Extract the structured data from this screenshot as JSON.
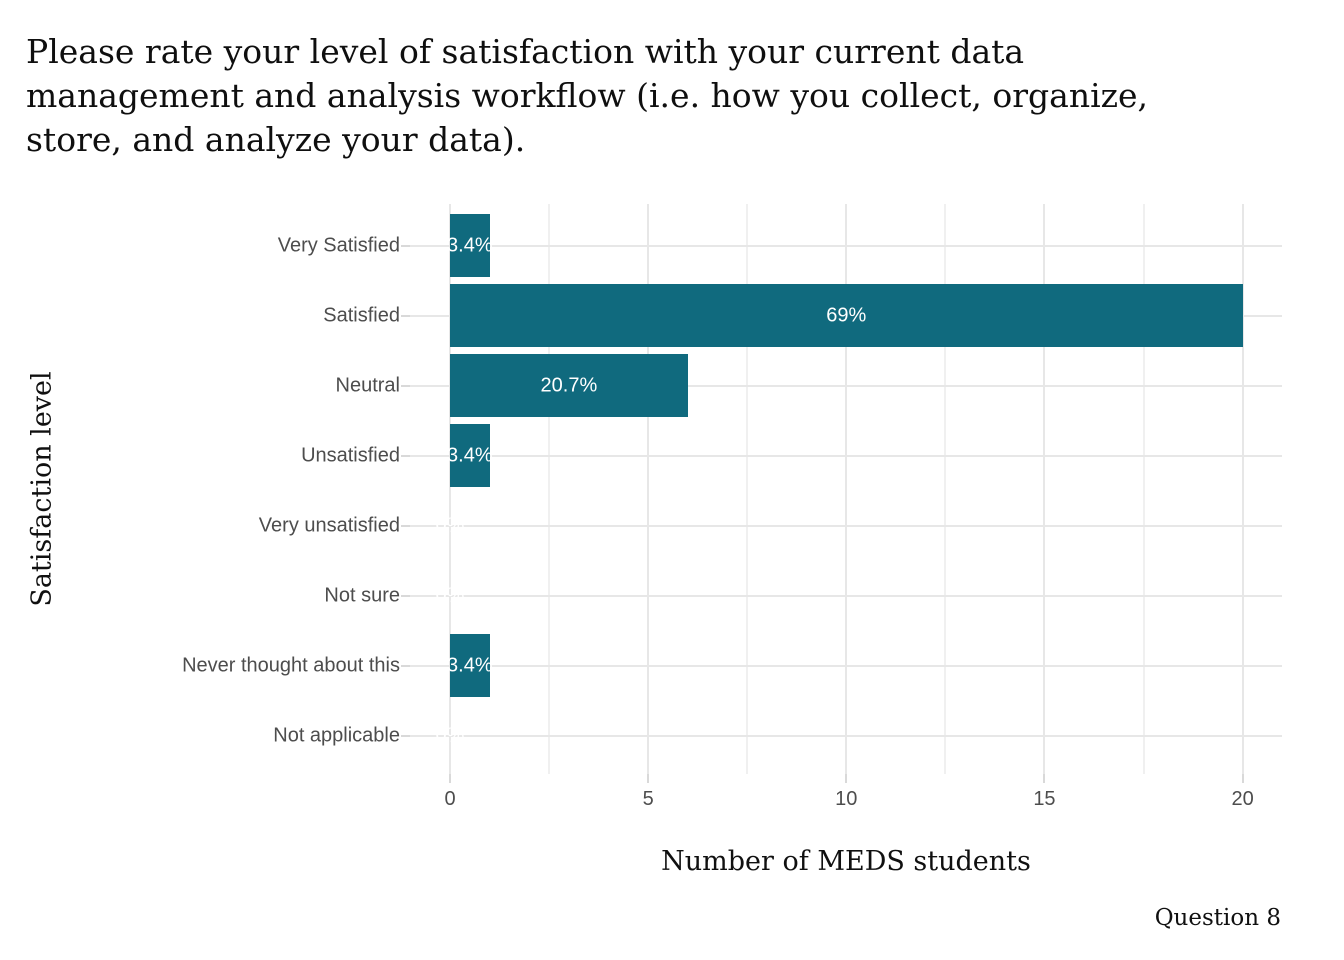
{
  "chart_data": {
    "type": "bar",
    "orientation": "horizontal",
    "title": "Please rate your level of satisfaction with your current data management and analysis workflow (i.e. how you collect, organize, store, and analyze your data).",
    "title_lines": [
      "Please rate your level of satisfaction with your current data",
      "management and analysis workflow (i.e. how you collect, organize,",
      "store, and analyze your data)."
    ],
    "xlabel": "Number of MEDS students",
    "ylabel": "Satisfaction level",
    "caption": "Question 8",
    "categories": [
      "Very Satisfied",
      "Satisfied",
      "Neutral",
      "Unsatisfied",
      "Very unsatisfied",
      "Not sure",
      "Never thought about this",
      "Not applicable"
    ],
    "values": [
      1,
      20,
      6,
      1,
      0,
      0,
      1,
      0
    ],
    "bar_labels": [
      "3.4%",
      "69%",
      "20.7%",
      "3.4%",
      "0%",
      "0%",
      "3.4%",
      "0%"
    ],
    "x_ticks": [
      0,
      5,
      10,
      15,
      20
    ],
    "xlim": [
      0,
      20
    ],
    "grid": true,
    "legend": false,
    "colors": {
      "bar": "#106a7e",
      "bar_label": "#ffffff",
      "grid_major": "#e7e7e7",
      "grid_minor": "#f0f0f0",
      "tick_mark": "#d9d9d9",
      "axis_text": "#4d4d4d",
      "title_text": "#0f0f0f"
    }
  }
}
